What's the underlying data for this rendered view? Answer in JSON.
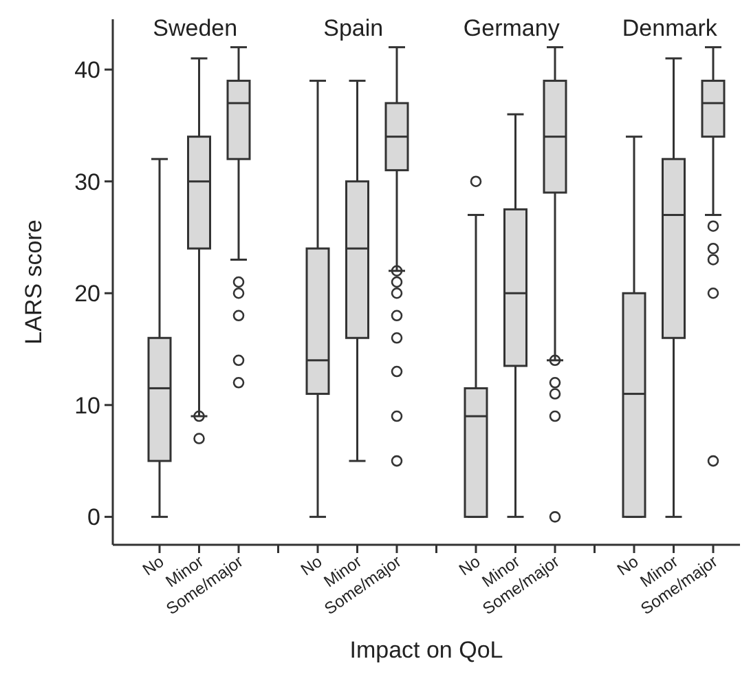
{
  "chart_data": {
    "type": "box",
    "ylabel": "LARS score",
    "xlabel": "Impact on QoL",
    "categories": [
      "No",
      "Minor",
      "Some/major",
      null,
      "No",
      "Minor",
      "Some/major",
      null,
      "No",
      "Minor",
      "Some/major",
      null,
      "No",
      "Minor",
      "Some/major"
    ],
    "annotations": [
      "Sweden",
      "Spain",
      "Germany",
      "Denmark"
    ],
    "ylim": [
      -2.5,
      44.5
    ],
    "yticks": [
      0,
      10,
      20,
      30,
      40
    ],
    "series": [
      {
        "color": "#d9d9d9",
        "boxes": [
          {
            "low": 0,
            "q1": 5,
            "median": 11.5,
            "q3": 16,
            "high": 32
          },
          {
            "low": 9,
            "q1": 24,
            "median": 30,
            "q3": 34,
            "high": 41,
            "outliers": [
              9,
              7
            ]
          },
          {
            "low": 23,
            "q1": 32,
            "median": 37,
            "q3": 39,
            "high": 42,
            "outliers": [
              21,
              20,
              18,
              14,
              12
            ]
          },
          null,
          {
            "low": 0,
            "q1": 11,
            "median": 14,
            "q3": 24,
            "high": 39
          },
          {
            "low": 5,
            "q1": 16,
            "median": 24,
            "q3": 30,
            "high": 39
          },
          {
            "low": 22,
            "q1": 31,
            "median": 34,
            "q3": 37,
            "high": 42,
            "outliers": [
              22,
              21,
              20,
              18,
              16,
              13,
              9,
              5
            ]
          },
          null,
          {
            "low": 0,
            "q1": 0,
            "median": 9,
            "q3": 11.5,
            "high": 27,
            "outliers": [
              30
            ]
          },
          {
            "low": 0,
            "q1": 13.5,
            "median": 20,
            "q3": 27.5,
            "high": 36
          },
          {
            "low": 14,
            "q1": 29,
            "median": 34,
            "q3": 39,
            "high": 42,
            "outliers": [
              14,
              12,
              11,
              9,
              0
            ]
          },
          null,
          {
            "low": 0,
            "q1": 0,
            "median": 11,
            "q3": 20,
            "high": 34
          },
          {
            "low": 0,
            "q1": 16,
            "median": 27,
            "q3": 32,
            "high": 41
          },
          {
            "low": 27,
            "q1": 34,
            "median": 37,
            "q3": 39,
            "high": 42,
            "outliers": [
              26,
              24,
              23,
              20,
              5
            ]
          }
        ]
      }
    ]
  }
}
